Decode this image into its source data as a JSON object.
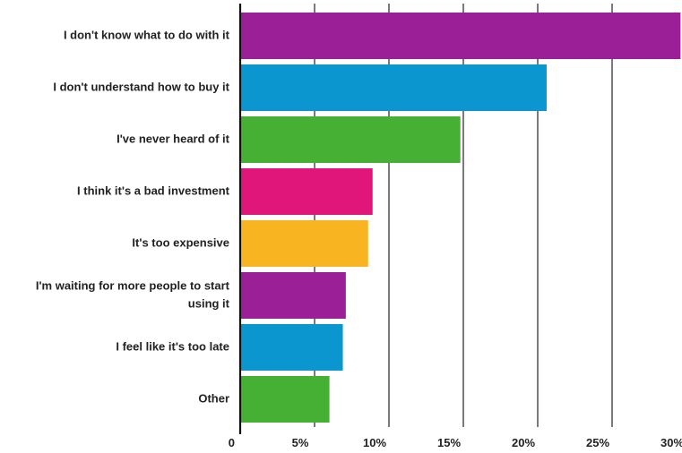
{
  "chart_data": {
    "type": "bar",
    "orientation": "horizontal",
    "categories": [
      "I don't know what to do with it",
      "I don't understand how to buy it",
      "I've never heard of it",
      "I think it's a bad investment",
      "It's too expensive",
      "I'm waiting for more people to start using it",
      "I feel like it's too late",
      "Other"
    ],
    "label_lines": [
      [
        "I don't know what to do with it"
      ],
      [
        "I don't understand how to buy it"
      ],
      [
        "I've never heard of it"
      ],
      [
        "I think it's a bad investment"
      ],
      [
        "It's too expensive"
      ],
      [
        "I'm waiting for more people to start",
        "using it"
      ],
      [
        "I feel like it's too late"
      ],
      [
        "Other"
      ]
    ],
    "values": [
      29.6,
      20.6,
      14.8,
      8.9,
      8.6,
      7.1,
      6.9,
      6.0
    ],
    "colors": [
      "#9b1f96",
      "#0b96cf",
      "#45b033",
      "#e1167b",
      "#f8b421",
      "#9b1f96",
      "#0b96cf",
      "#45b033"
    ],
    "xlim": [
      0,
      30
    ],
    "xticks": [
      0,
      5,
      10,
      15,
      20,
      25,
      30
    ],
    "xtick_labels": [
      "0",
      "5%",
      "10%",
      "15%",
      "20%",
      "25%",
      "30%"
    ],
    "grid": true,
    "title": "",
    "xlabel": "",
    "ylabel": ""
  }
}
